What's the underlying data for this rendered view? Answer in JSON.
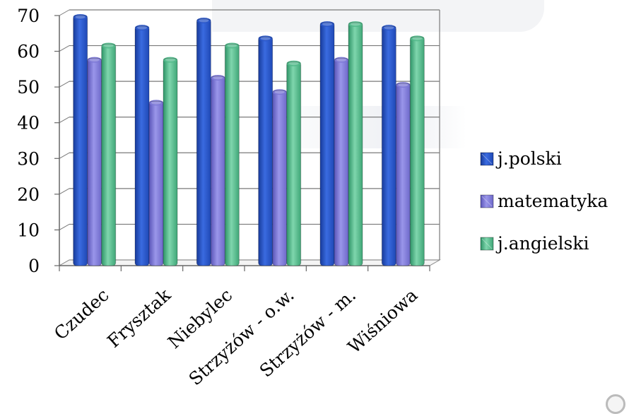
{
  "chart_data": {
    "type": "bar",
    "categories": [
      "Czudec",
      "Frysztak",
      "Niebylec",
      "Strzyżów - o.w.",
      "Strzyżów - m.",
      "Wiśniowa"
    ],
    "series": [
      {
        "name": "j.polski",
        "values": [
          70,
          67,
          69,
          64,
          68,
          67
        ],
        "color": "#2a56c8"
      },
      {
        "name": "matematyka",
        "values": [
          58,
          46,
          53,
          49,
          58,
          51
        ],
        "color": "#7c78d6"
      },
      {
        "name": "j.angielski",
        "values": [
          62,
          58,
          62,
          57,
          68,
          64
        ],
        "color": "#52b98a"
      }
    ],
    "title": "",
    "xlabel": "",
    "ylabel": "",
    "ylim": [
      0,
      70
    ],
    "yticks": [
      0,
      10,
      20,
      30,
      40,
      50,
      60,
      70
    ],
    "grid": true,
    "legend": "right"
  }
}
